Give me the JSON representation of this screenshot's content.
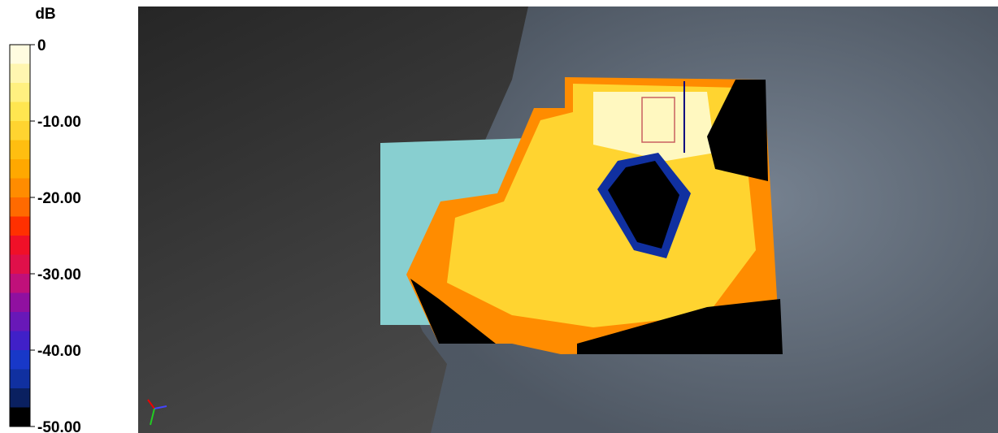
{
  "colorbar": {
    "title": "dB",
    "ticks": [
      "0",
      "-10.00",
      "-20.00",
      "-30.00",
      "-40.00",
      "-50.00"
    ],
    "colors": [
      "#fffce0",
      "#fff6b0",
      "#fff080",
      "#ffe650",
      "#ffd430",
      "#ffbe10",
      "#ffa800",
      "#ff8c00",
      "#ff6a00",
      "#ff3000",
      "#f01028",
      "#e0104a",
      "#c0107a",
      "#9010a0",
      "#6818b8",
      "#4020c8",
      "#1838c8",
      "#1030a0",
      "#0a2060",
      "#000000"
    ]
  }
}
